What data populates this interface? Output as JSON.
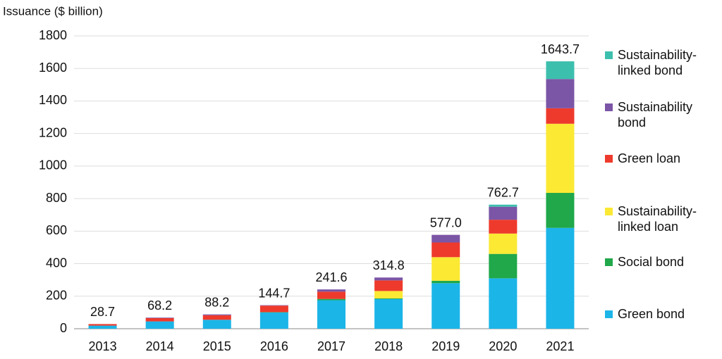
{
  "chart_data": {
    "type": "stacked_bar",
    "y_axis_label": "Issuance  ($ billion)",
    "categories": [
      "2013",
      "2014",
      "2015",
      "2016",
      "2017",
      "2018",
      "2019",
      "2020",
      "2021"
    ],
    "series": [
      {
        "name": "Green bond",
        "color": "#1cb5e8",
        "values": [
          19,
          45,
          55,
          100,
          175,
          182,
          280,
          310,
          620
        ]
      },
      {
        "name": "Social bond",
        "color": "#20a84a",
        "values": [
          0,
          0,
          0,
          2,
          8,
          5,
          15,
          150,
          215
        ]
      },
      {
        "name": "Sustainability-linked loan",
        "color": "#fbe934",
        "values": [
          0,
          0,
          0,
          0,
          0,
          45,
          145,
          125,
          425
        ]
      },
      {
        "name": "Green loan",
        "color": "#ee3a2c",
        "values": [
          9.7,
          20,
          28,
          40,
          45,
          65,
          90,
          85,
          95
        ]
      },
      {
        "name": "Sustainability bond",
        "color": "#7b55a6",
        "values": [
          0,
          3.2,
          5.2,
          2.7,
          13.6,
          17.8,
          47,
          80,
          180
        ]
      },
      {
        "name": "Sustainability-linked bond",
        "color": "#3dbfae",
        "values": [
          0,
          0,
          0,
          0,
          0,
          0,
          0,
          12.7,
          108.7
        ]
      }
    ],
    "totals": [
      28.7,
      68.2,
      88.2,
      144.7,
      241.6,
      314.8,
      577.0,
      762.7,
      1643.7
    ],
    "total_labels": [
      "28.7",
      "68.2",
      "88.2",
      "144.7",
      "241.6",
      "314.8",
      "577.0",
      "762.7",
      "1643.7"
    ],
    "ylim": [
      0,
      1800
    ],
    "yticks": [
      0,
      200,
      400,
      600,
      800,
      1000,
      1200,
      1400,
      1600,
      1800
    ],
    "grid": true
  }
}
